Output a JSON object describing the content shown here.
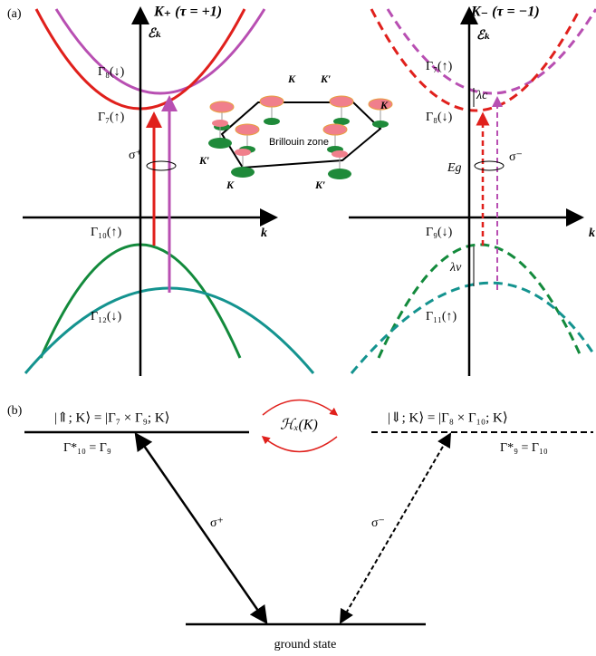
{
  "panel_a": {
    "label": "(a)",
    "left": {
      "title": "K₊ (τ = +1)",
      "energy_axis": "ℰₖ",
      "k_axis": "k",
      "upper_conduction": "Γ₈(↓)",
      "lower_conduction": "Γ₇(↑)",
      "upper_valence": "Γ₁₀(↑)",
      "lower_valence": "Γ₁₂(↓)",
      "polarization": "σ⁺"
    },
    "right": {
      "title": "K₋ (τ = −1)",
      "energy_axis": "ℰₖ",
      "k_axis": "k",
      "upper_conduction": "Γ₇(↑)",
      "conduction_splitting": "λc",
      "lower_conduction": "Γ₈(↓)",
      "gap": "Eg",
      "polarization": "σ⁻",
      "upper_valence": "Γ₉(↓)",
      "valence_splitting": "λv",
      "lower_valence": "Γ₁₁(↑)"
    },
    "inset": {
      "title": "Brillouin zone",
      "points": [
        "K",
        "K′",
        "K′",
        "K",
        "K′",
        "K"
      ]
    }
  },
  "panel_b": {
    "label": "(b)",
    "bright_state": "|⇑; K⟩ = |Γ₇ × Γ₉; K⟩",
    "bright_symmetry": "Γ*₁₀ = Γ₉",
    "coupling": "ℋₓ(K)",
    "dark_state": "|⇓; K⟩ = |Γ₈ × Γ₁₀; K⟩",
    "dark_symmetry": "Γ*₉ = Γ₁₀",
    "left_polarization": "σ⁺",
    "right_polarization": "σ⁻",
    "ground": "ground state"
  }
}
